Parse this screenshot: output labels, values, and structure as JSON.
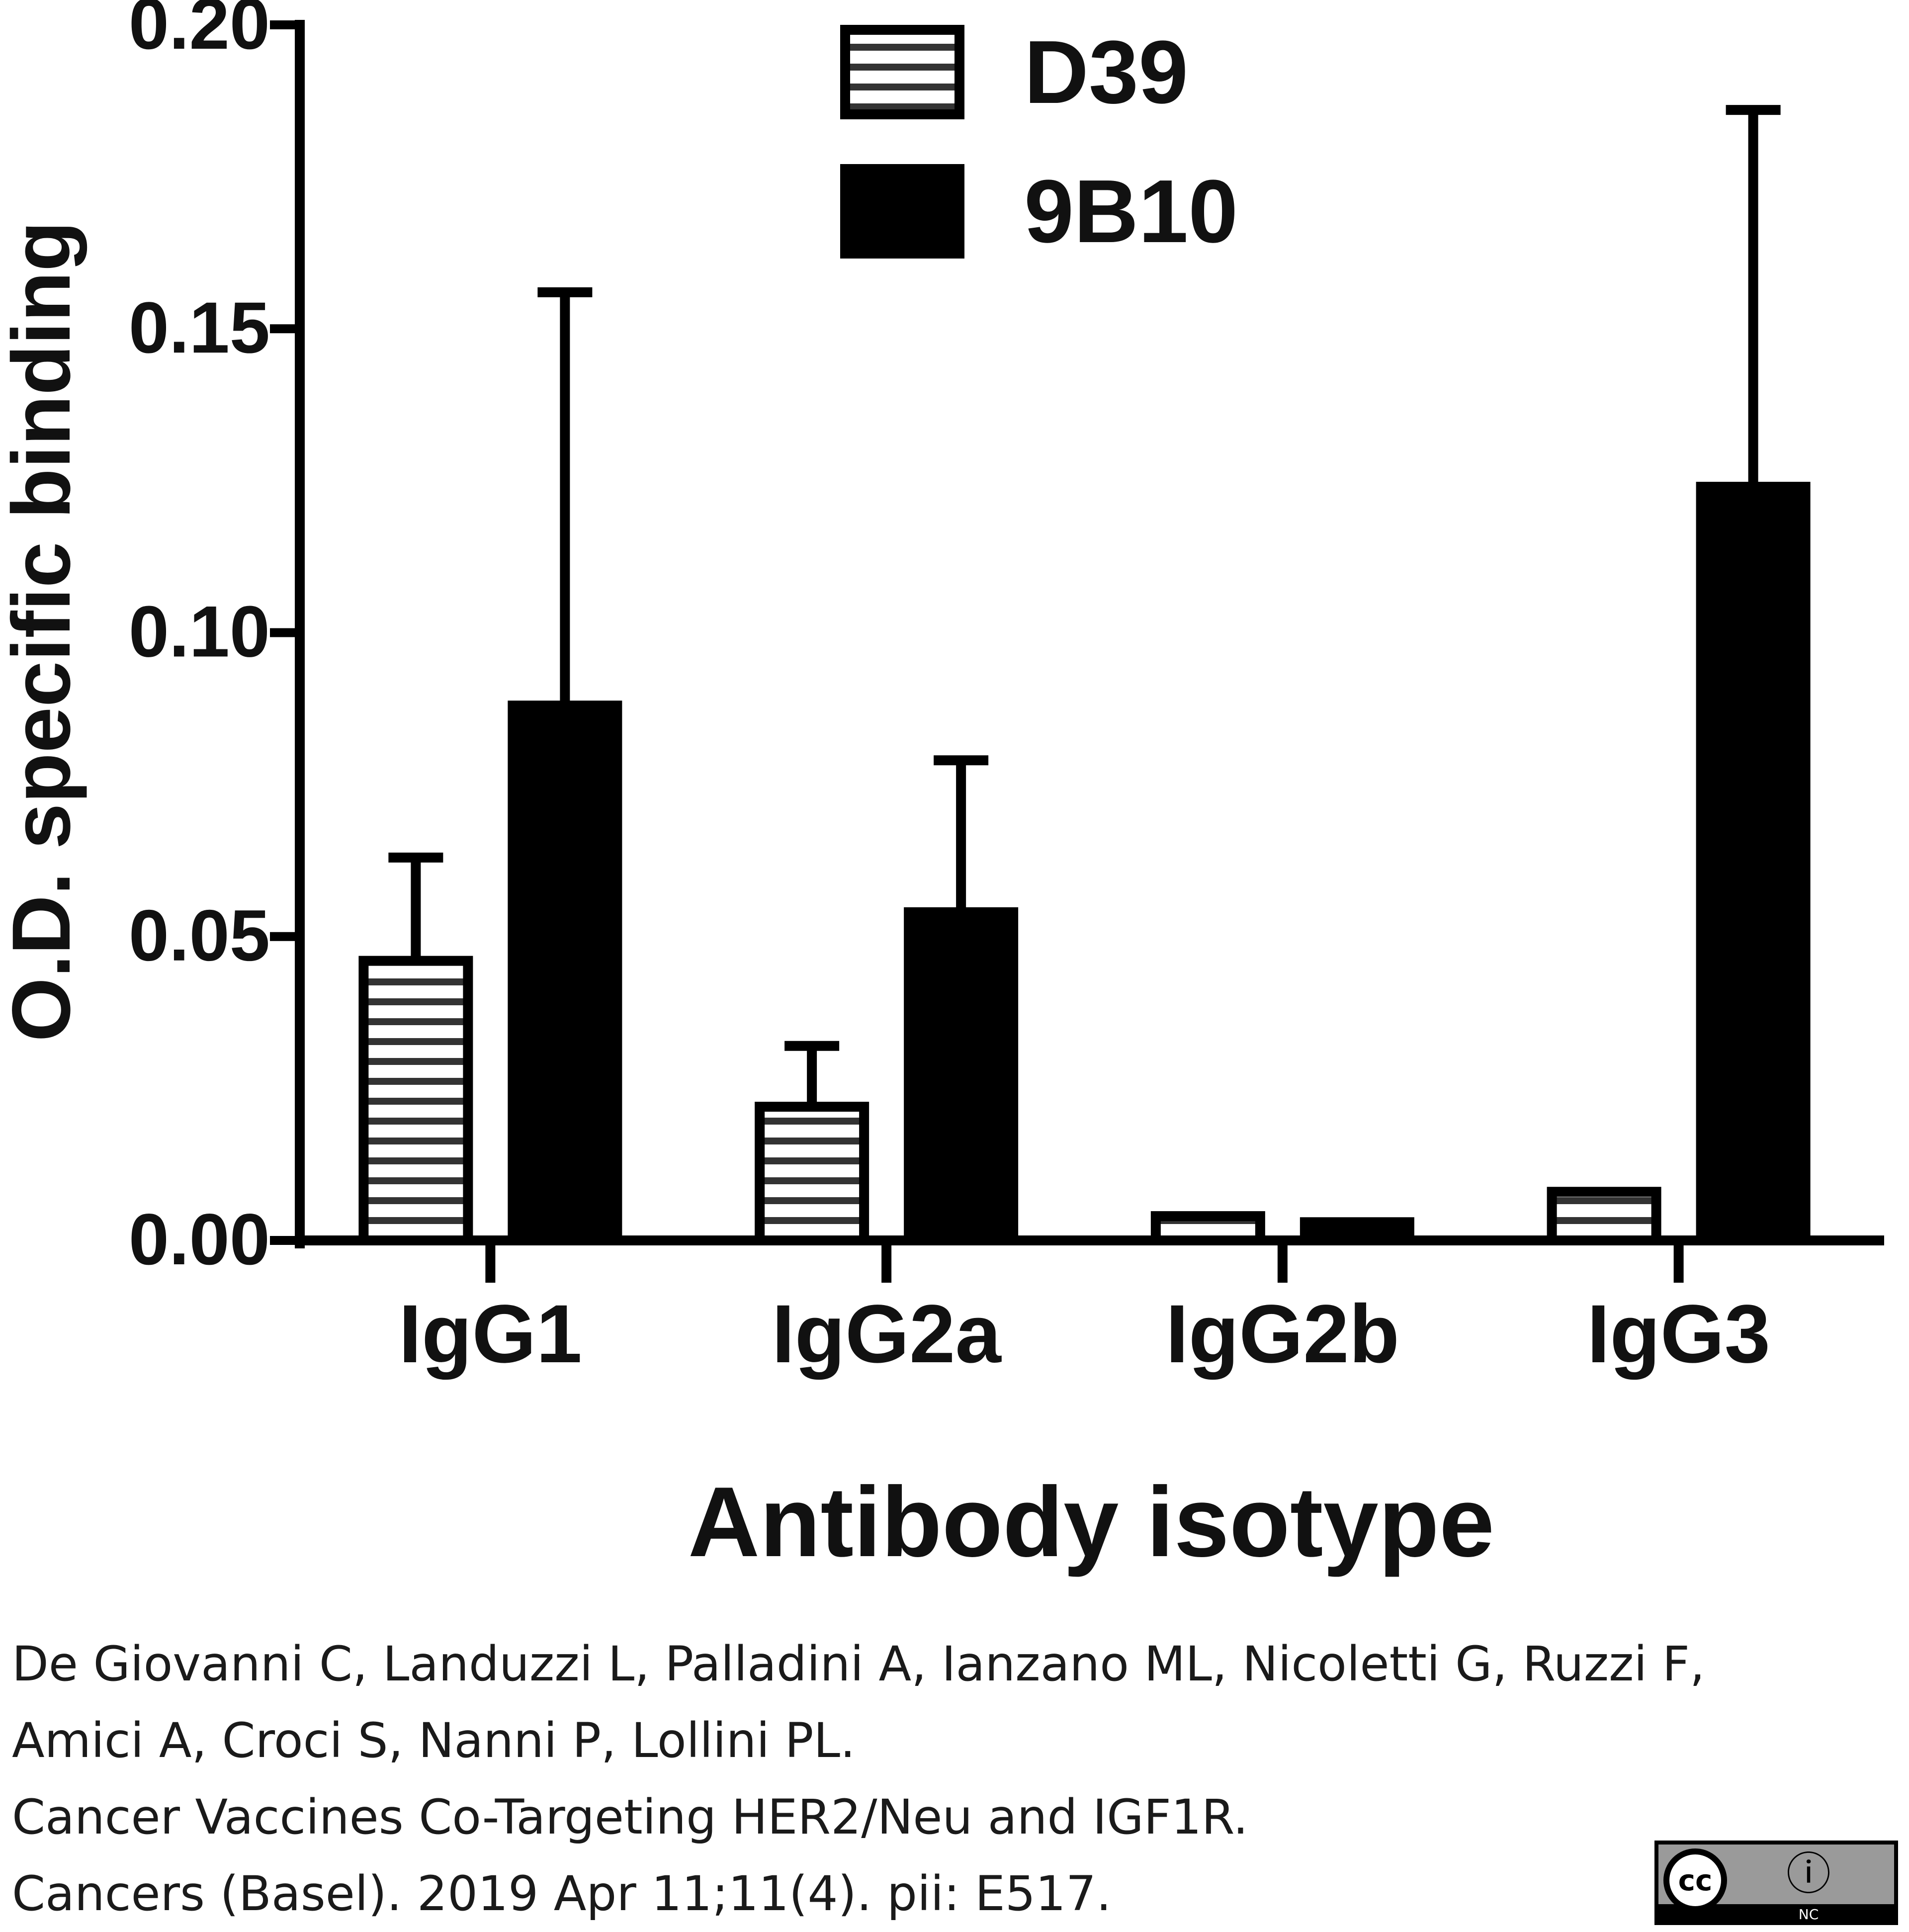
{
  "chart_data": {
    "type": "bar",
    "xlabel": "Antibody isotype",
    "ylabel": "O.D. specific binding",
    "ylim": [
      0,
      0.2
    ],
    "yticks": [
      "0.00",
      "0.05",
      "0.10",
      "0.15",
      "0.20"
    ],
    "categories": [
      "IgG1",
      "IgG2a",
      "IgG2b",
      "IgG3"
    ],
    "legend_position": "top-center",
    "series": [
      {
        "name": "D39",
        "pattern": "horizontal-stripes",
        "color": "#000000",
        "values": [
          0.046,
          0.022,
          0.004,
          0.008
        ],
        "error": [
          0.017,
          0.01,
          0.0,
          0.0
        ]
      },
      {
        "name": "9B10",
        "pattern": "solid",
        "color": "#000000",
        "values": [
          0.088,
          0.054,
          0.003,
          0.124
        ],
        "error": [
          0.068,
          0.025,
          0.0,
          0.062
        ]
      }
    ]
  },
  "citation": {
    "authors": "De Giovanni C, Landuzzi L, Palladini A, Ianzano ML, Nicoletti G, Ruzzi F, Amici A, Croci S, Nanni P, Lollini PL.",
    "title": "Cancer Vaccines Co-Targeting HER2/Neu and IGF1R.",
    "journal": "Cancers (Basel). 2019 Apr 11;11(4). pii: E517."
  },
  "license_badge": {
    "icon": "cc-by-nc-icon",
    "left_glyph": "cc",
    "right_glyph": "ⓘ",
    "caption": "NC"
  }
}
